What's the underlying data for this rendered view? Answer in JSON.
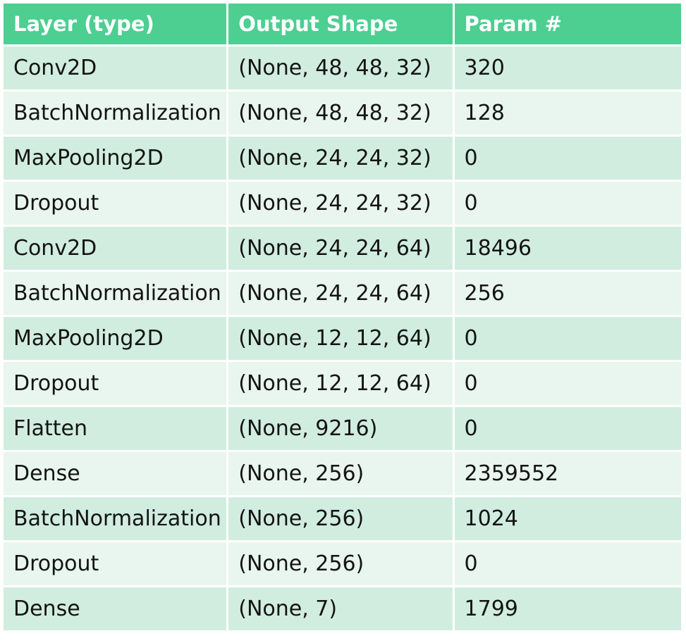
{
  "table": {
    "headers": [
      "Layer (type)",
      "Output Shape",
      "Param #"
    ],
    "rows": [
      [
        "Conv2D",
        "(None, 48, 48, 32)",
        "320"
      ],
      [
        "BatchNormalization",
        "(None, 48, 48, 32)",
        "128"
      ],
      [
        "MaxPooling2D",
        "(None, 24, 24, 32)",
        "0"
      ],
      [
        "Dropout",
        "(None, 24, 24, 32)",
        "0"
      ],
      [
        "Conv2D",
        "(None, 24, 24, 64)",
        "18496"
      ],
      [
        "BatchNormalization",
        "(None, 24, 24, 64)",
        "256"
      ],
      [
        "MaxPooling2D",
        "(None, 12, 12, 64)",
        "0"
      ],
      [
        "Dropout",
        "(None, 12, 12, 64)",
        "0"
      ],
      [
        "Flatten",
        "(None, 9216)",
        "0"
      ],
      [
        "Dense",
        "(None, 256)",
        "2359552"
      ],
      [
        "BatchNormalization",
        "(None, 256)",
        "1024"
      ],
      [
        "Dropout",
        "(None, 256)",
        "0"
      ],
      [
        "Dense",
        "(None, 7)",
        "1799"
      ]
    ]
  },
  "colors": {
    "header_bg": "#4ccf91",
    "header_text": "#ffffff",
    "row_odd_bg": "#d1ede0",
    "row_even_bg": "#e9f5ef",
    "cell_text": "#141414"
  }
}
